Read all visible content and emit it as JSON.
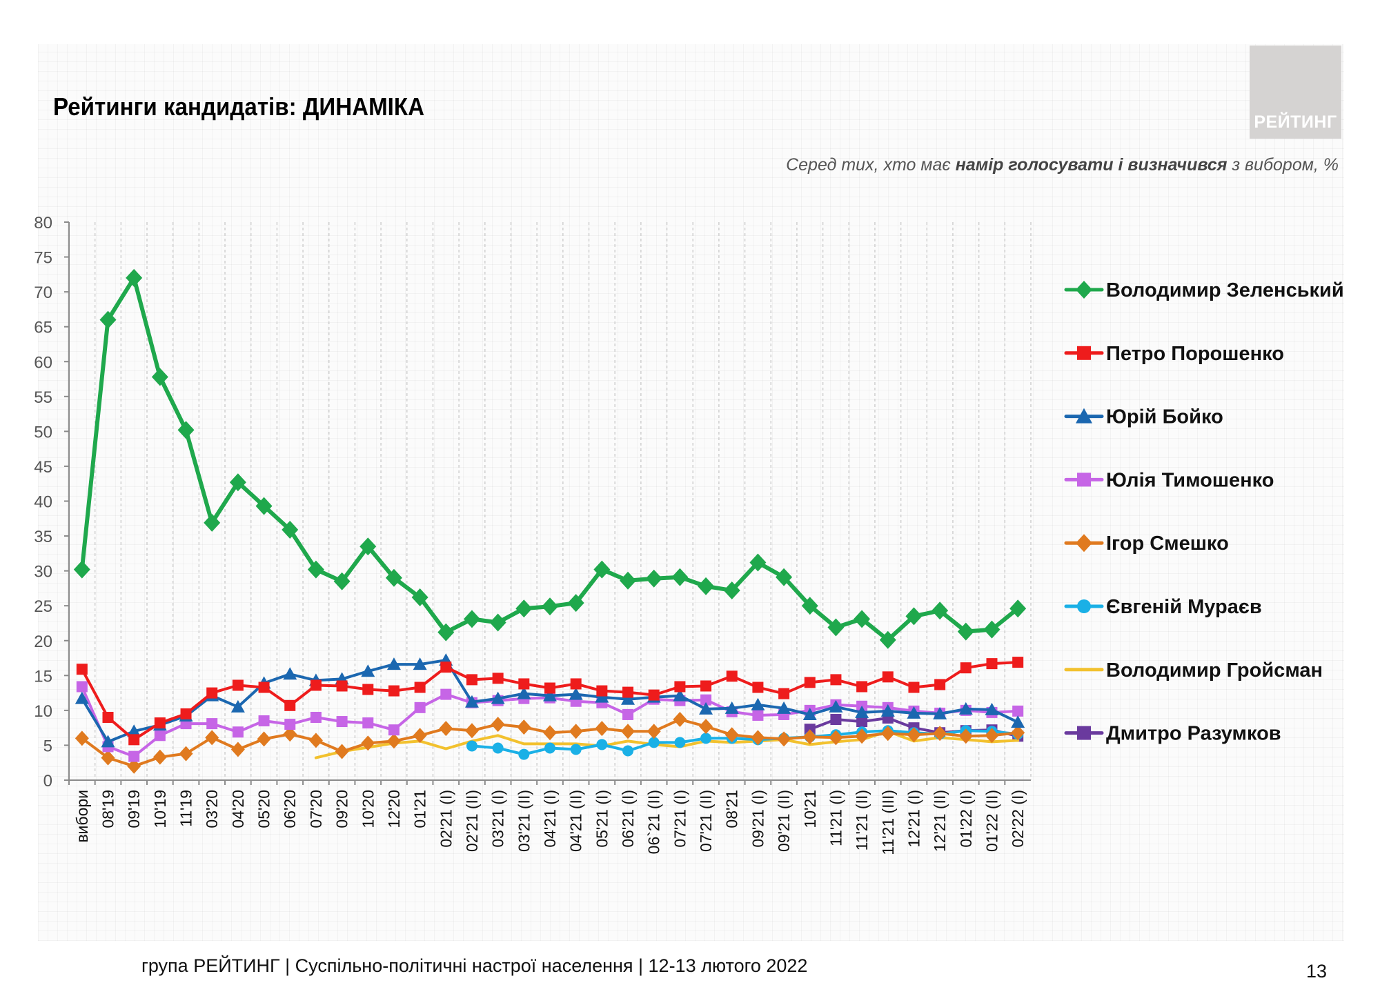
{
  "header": {
    "title": "Рейтинги кандидатів: ДИНАМІКА",
    "logo": "РЕЙТИНГ",
    "subtitle_pre": "Серед тих, хто має ",
    "subtitle_bold": "намір голосувати і визначився",
    "subtitle_post": " з вибором, %"
  },
  "footer": {
    "text": "група РЕЙТИНГ | Суспільно-політичні настрої населення | 12-13 лютого 2022",
    "page_number": "13"
  },
  "chart_data": {
    "type": "line",
    "title": "Рейтинги кандидатів: ДИНАМІКА",
    "ylim": [
      0,
      80
    ],
    "yticks": [
      "0",
      "5",
      "10",
      "15",
      "20",
      "25",
      "30",
      "35",
      "40",
      "45",
      "50",
      "55",
      "60",
      "65",
      "70",
      "75",
      "80"
    ],
    "grid": "vertical dashed",
    "legend_position": "right",
    "categories": [
      "вибори",
      "08'19",
      "09'19",
      "10'19",
      "11'19",
      "03'20",
      "04'20",
      "05'20",
      "06'20",
      "07'20",
      "09'20",
      "10'20",
      "12'20",
      "01'21",
      "02'21 (I)",
      "02'21 (II)",
      "03'21 (I)",
      "03'21 (II)",
      "04'21 (I)",
      "04'21 (II)",
      "05'21 (I)",
      "06'21 (I)",
      "06`21 (II)",
      "07'21 (I)",
      "07'21 (II)",
      "08'21",
      "09'21 (I)",
      "09'21 (II)",
      "10'21",
      "11'21 (I)",
      "11'21 (II)",
      "11'21 (III)",
      "12'21 (I)",
      "12'21 (II)",
      "01'22 (I)",
      "01'22 (II)",
      "02'22 (I)"
    ],
    "series": [
      {
        "name": "Володимир Зеленський",
        "color": "#1fa84c",
        "marker": "diamond",
        "values": [
          30.2,
          66,
          72,
          57.8,
          50.2,
          36.9,
          42.7,
          39.3,
          35.9,
          30.2,
          28.5,
          33.5,
          29,
          26.2,
          21.2,
          23.1,
          22.6,
          24.6,
          24.9,
          25.4,
          30.2,
          28.6,
          28.9,
          29.1,
          27.8,
          27.2,
          31.2,
          29.1,
          25,
          21.9,
          23.1,
          20.1,
          23.5,
          24.3,
          21.3,
          21.6,
          24.6
        ]
      },
      {
        "name": "Петро Порошенко",
        "color": "#ee1c1c",
        "marker": "square",
        "values": [
          15.9,
          9,
          5.8,
          8.2,
          9.5,
          12.5,
          13.6,
          13.3,
          10.7,
          13.6,
          13.5,
          13,
          12.8,
          13.3,
          16.2,
          14.4,
          14.6,
          13.8,
          13.2,
          13.8,
          12.8,
          12.6,
          12.2,
          13.4,
          13.5,
          14.9,
          13.3,
          12.4,
          14,
          14.4,
          13.4,
          14.8,
          13.3,
          13.7,
          16.1,
          16.7,
          16.9
        ]
      },
      {
        "name": "Юрій Бойко",
        "color": "#1b67b0",
        "marker": "triangle",
        "values": [
          11.7,
          5.5,
          7,
          7.9,
          9.2,
          12.1,
          10.5,
          13.9,
          15.2,
          14.3,
          14.5,
          15.6,
          16.6,
          16.6,
          17.2,
          11.2,
          11.7,
          12.4,
          12.1,
          12.3,
          11.9,
          11.6,
          11.9,
          12.1,
          10.2,
          10.3,
          10.8,
          10.3,
          9.4,
          10.5,
          9.7,
          9.9,
          9.6,
          9.5,
          10.2,
          10.1,
          8.3
        ]
      },
      {
        "name": "Юлія Тимошенко",
        "color": "#c665e6",
        "marker": "square",
        "values": [
          13.4,
          4.8,
          3.4,
          6.4,
          8.1,
          8.1,
          6.9,
          8.5,
          8,
          9,
          8.4,
          8.2,
          7.2,
          10.4,
          12.3,
          11.1,
          11.4,
          11.7,
          11.8,
          11.3,
          11.1,
          9.4,
          11.6,
          11.4,
          11.5,
          9.8,
          9.3,
          9.4,
          10,
          10.8,
          10.6,
          10.4,
          9.9,
          9.6,
          10,
          9.7,
          9.9
        ]
      },
      {
        "name": "Ігор Смешко",
        "color": "#e07a1f",
        "marker": "diamond",
        "values": [
          6,
          3.2,
          2,
          3.3,
          3.8,
          6.1,
          4.4,
          5.9,
          6.6,
          5.7,
          4.1,
          5.3,
          5.6,
          6.4,
          7.4,
          7.1,
          8,
          7.6,
          6.8,
          7,
          7.4,
          7,
          7,
          8.7,
          7.7,
          6.5,
          6.1,
          5.9,
          6.2,
          6.1,
          6.3,
          6.7,
          6.5,
          6.7,
          6.3,
          6.4,
          6.8
        ]
      },
      {
        "name": "Євгеній Мураєв",
        "color": "#1ab0e6",
        "marker": "circle",
        "values": [
          null,
          null,
          null,
          null,
          null,
          null,
          null,
          null,
          null,
          null,
          null,
          null,
          null,
          null,
          null,
          4.9,
          4.6,
          3.7,
          4.6,
          4.4,
          5.1,
          4.2,
          5.4,
          5.4,
          6,
          6,
          5.8,
          6,
          6.2,
          6.5,
          6.9,
          7.1,
          6.8,
          6.6,
          7.1,
          7,
          6.6
        ]
      },
      {
        "name": "Володимир Гройсман",
        "color": "#f2c12e",
        "marker": "none",
        "values": [
          null,
          null,
          null,
          null,
          null,
          null,
          null,
          null,
          null,
          3.2,
          4.1,
          4.7,
          5.3,
          5.6,
          4.5,
          5.6,
          6.4,
          5.2,
          5.2,
          5.2,
          4.9,
          5.6,
          5.1,
          4.8,
          5.6,
          5.4,
          5.6,
          5.8,
          5.1,
          5.5,
          5.8,
          7,
          5.6,
          6.1,
          5.8,
          5.5,
          5.7
        ]
      },
      {
        "name": "Дмитро Разумков",
        "color": "#6a3a9e",
        "marker": "square",
        "values": [
          null,
          null,
          null,
          null,
          null,
          null,
          null,
          null,
          null,
          null,
          null,
          null,
          null,
          null,
          null,
          null,
          null,
          null,
          null,
          null,
          null,
          null,
          null,
          null,
          null,
          null,
          null,
          null,
          7.3,
          8.7,
          8.4,
          8.9,
          7.5,
          6.8,
          7.1,
          7.2,
          6.3
        ]
      }
    ]
  }
}
